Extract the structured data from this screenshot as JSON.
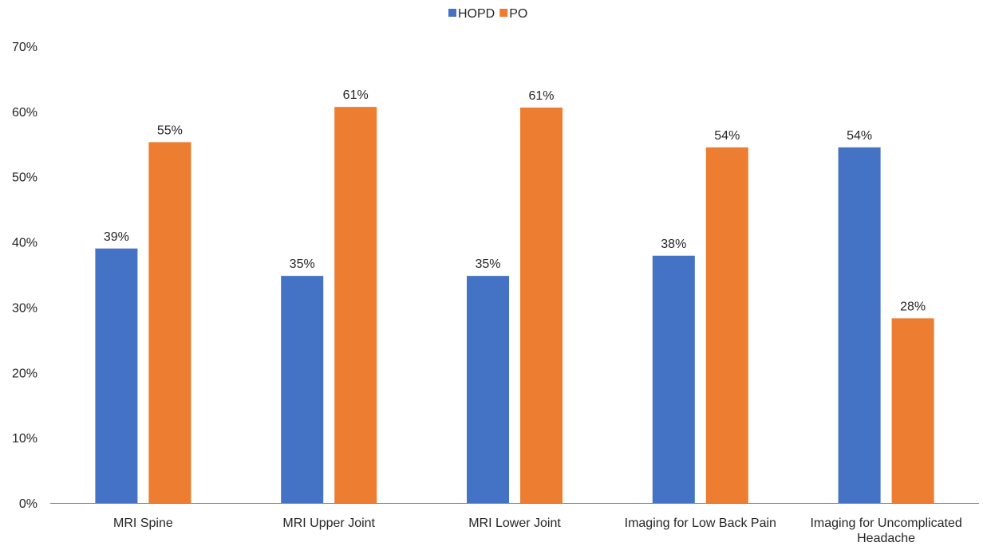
{
  "chart_data": {
    "type": "bar",
    "categories": [
      [
        "MRI Spine"
      ],
      [
        "MRI Upper Joint"
      ],
      [
        "MRI Lower Joint"
      ],
      [
        "Imaging for Low Back Pain"
      ],
      [
        "Imaging for Uncomplicated",
        "Headache"
      ]
    ],
    "series": [
      {
        "name": "HOPD",
        "color": "#4472C4",
        "values": [
          0.39,
          0.348,
          0.348,
          0.379,
          0.545
        ],
        "labels": [
          "39%",
          "35%",
          "35%",
          "38%",
          "54%"
        ]
      },
      {
        "name": "PO",
        "color": "#ED7D31",
        "values": [
          0.553,
          0.607,
          0.606,
          0.545,
          0.283
        ],
        "labels": [
          "55%",
          "61%",
          "61%",
          "54%",
          "28%"
        ]
      }
    ],
    "y_ticks": [
      {
        "value": 0.0,
        "label": "0%"
      },
      {
        "value": 0.1,
        "label": "10%"
      },
      {
        "value": 0.2,
        "label": "20%"
      },
      {
        "value": 0.3,
        "label": "30%"
      },
      {
        "value": 0.4,
        "label": "40%"
      },
      {
        "value": 0.5,
        "label": "50%"
      },
      {
        "value": 0.6,
        "label": "60%"
      },
      {
        "value": 0.7,
        "label": "70%"
      }
    ],
    "ylim": [
      0,
      0.7
    ],
    "grid": false,
    "legend_position": "top-center",
    "axis_color": "#808080",
    "text_color": "#262626"
  }
}
